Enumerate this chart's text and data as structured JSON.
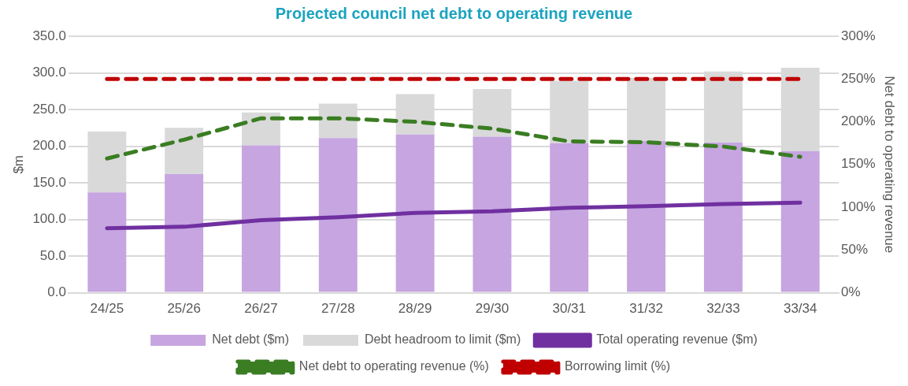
{
  "chart_data": {
    "type": "bar",
    "title": "Projected council net debt to operating revenue",
    "ylabel": "$m",
    "y2label": "Net debt to operating revenue",
    "stacked": true,
    "grid": "y",
    "legend": "bottom",
    "marker": "none",
    "categories": [
      "24/25",
      "25/26",
      "26/27",
      "27/28",
      "28/29",
      "29/30",
      "30/31",
      "31/32",
      "32/33",
      "33/34"
    ],
    "ylim": [
      0,
      350
    ],
    "yticks": [
      {
        "value": 0,
        "label": "0.0"
      },
      {
        "value": 50,
        "label": "50.0"
      },
      {
        "value": 100,
        "label": "100.0"
      },
      {
        "value": 150,
        "label": "150.0"
      },
      {
        "value": 200,
        "label": "200.0"
      },
      {
        "value": 250,
        "label": "250.0"
      },
      {
        "value": 300,
        "label": "300.0"
      },
      {
        "value": 350,
        "label": "350.0"
      }
    ],
    "y2lim": [
      0,
      300
    ],
    "y2ticks": [
      {
        "value": 0,
        "label": "0%"
      },
      {
        "value": 50,
        "label": "50%"
      },
      {
        "value": 100,
        "label": "100%"
      },
      {
        "value": 150,
        "label": "150%"
      },
      {
        "value": 200,
        "label": "200%"
      },
      {
        "value": 250,
        "label": "250%"
      },
      {
        "value": 300,
        "label": "300%"
      }
    ],
    "series": [
      {
        "name": "Net debt ($m)",
        "color": "#c6a5e1",
        "values": [
          137,
          162,
          201,
          211,
          216,
          213,
          204,
          207,
          205,
          193
        ]
      },
      {
        "name": "Debt headroom to limit ($m)",
        "color": "#d9d9d9",
        "values": [
          83,
          63,
          45,
          47,
          55,
          65,
          85,
          86,
          97,
          114
        ]
      },
      {
        "name": "Total operating revenue ($m)",
        "type": "line",
        "color": "#7030a0",
        "line_style": "solid",
        "values": [
          88,
          90,
          99,
          103,
          109,
          111,
          116,
          118,
          121,
          123
        ]
      },
      {
        "name": "Net debt to operating revenue (%)",
        "type": "line",
        "axis": "y2",
        "color": "#3a7d22",
        "line_style": "dashed",
        "values": [
          157,
          179,
          204,
          204,
          200,
          192,
          177,
          176,
          171,
          159
        ]
      },
      {
        "name": "Borrowing limit (%)",
        "type": "line",
        "axis": "y2",
        "color": "#c00000",
        "line_style": "dashed",
        "values": [
          250,
          250,
          250,
          250,
          250,
          250,
          250,
          250,
          250,
          250
        ]
      }
    ]
  }
}
